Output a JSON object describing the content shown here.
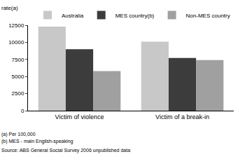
{
  "chart_data": {
    "type": "bar",
    "ylabel": "rate(a)",
    "categories": [
      "Victim of violence",
      "Victim of a break-in"
    ],
    "series": [
      {
        "name": "Australia",
        "color": "#c8c8c8",
        "values": [
          12300,
          10100
        ]
      },
      {
        "name": "MES country(b)",
        "color": "#3c3c3c",
        "values": [
          9000,
          7700
        ]
      },
      {
        "name": "Non-MES country",
        "color": "#a0a0a0",
        "values": [
          5800,
          7400
        ]
      }
    ],
    "ylim": [
      0,
      12500
    ],
    "yticks": [
      0,
      2500,
      5000,
      7500,
      10000,
      12500
    ],
    "grid": false,
    "legend": "top right",
    "annotations": [
      "(a) Per 100,000",
      "(b) MES - main English-speaking",
      "Source: ABS General Social Survey 2006 unpublished data"
    ]
  }
}
